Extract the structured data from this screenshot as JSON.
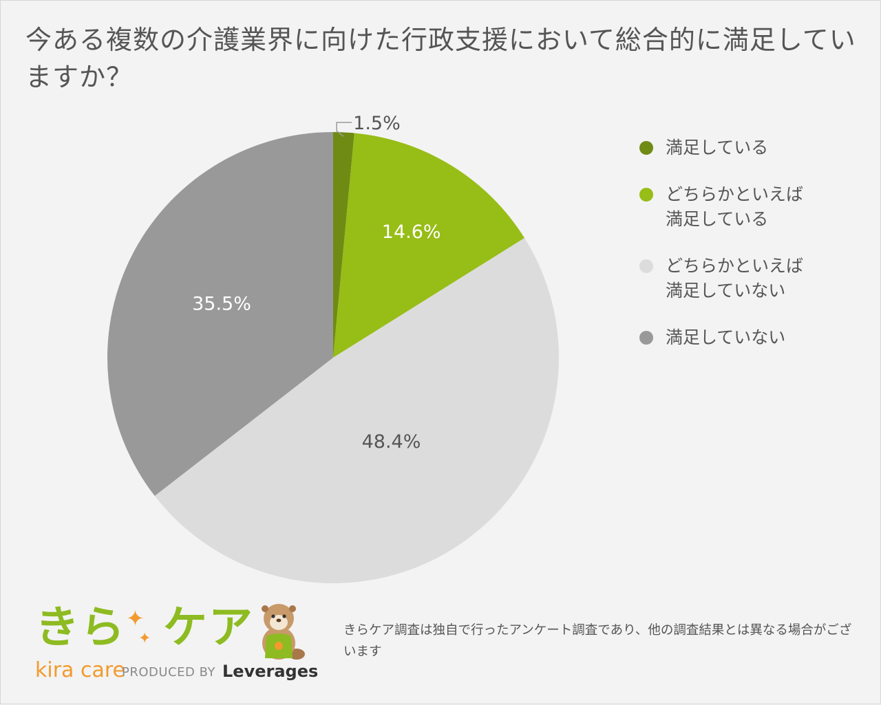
{
  "title": "今ある複数の介護業界に向けた行政支援において総合的に満足していますか？",
  "chart_data": {
    "type": "pie",
    "title": "今ある複数の介護業界に向けた行政支援において総合的に満足していますか？",
    "slices": [
      {
        "label": "満足している",
        "value": 1.5,
        "display": "1.5%",
        "color": "#6f8b14",
        "text_color": "#555555"
      },
      {
        "label": "どちらかといえば\n満足している",
        "value": 14.6,
        "display": "14.6%",
        "color": "#97bd17",
        "text_color": "#ffffff"
      },
      {
        "label": "どちらかといえば\n満足していない",
        "value": 48.4,
        "display": "48.4%",
        "color": "#dcdcdc",
        "text_color": "#555555"
      },
      {
        "label": "満足していない",
        "value": 35.5,
        "display": "35.5%",
        "color": "#999999",
        "text_color": "#ffffff"
      }
    ],
    "start": "12 o'clock",
    "direction": "clockwise",
    "legend": "right"
  },
  "footer": {
    "brand_main": "きら",
    "brand_main2": "ケア",
    "brand_sub": "kira care",
    "produced_by": "PRODUCED BY",
    "company": "Leverages",
    "disclaimer": "きらケア調査は独自で行ったアンケート調査であり、他の調査結果とは異なる場合がございます"
  }
}
